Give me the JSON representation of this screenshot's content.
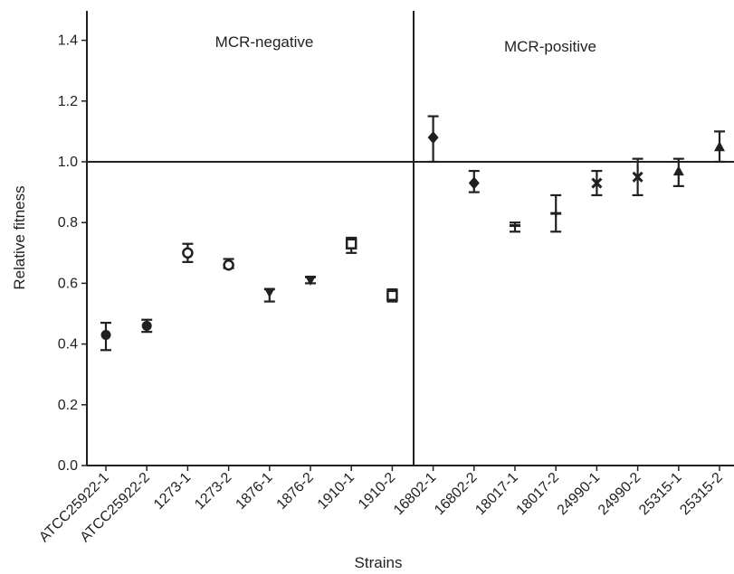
{
  "chart_data": {
    "type": "scatter",
    "title": "",
    "xlabel": "Strains",
    "ylabel": "Relative fitness",
    "ylim": [
      0,
      1.5
    ],
    "yticks": [
      "0.0",
      "0.2",
      "0.4",
      "0.6",
      "0.8",
      "1.0",
      "1.2",
      "1.4"
    ],
    "reference_line_y": 1.0,
    "grid": false,
    "categories": [
      "ATCC25922-1",
      "ATCC25922-2",
      "1273-1",
      "1273-2",
      "1876-1",
      "1876-2",
      "1910-1",
      "1910-2",
      "16802-1",
      "16802-2",
      "18017-1",
      "18017-2",
      "24990-1",
      "24990-2",
      "25315-1",
      "25315-2"
    ],
    "groups": [
      {
        "label": "MCR-negative",
        "categories": [
          "ATCC25922-1",
          "ATCC25922-2",
          "1273-1",
          "1273-2",
          "1876-1",
          "1876-2",
          "1910-1",
          "1910-2"
        ]
      },
      {
        "label": "MCR-positive",
        "categories": [
          "16802-1",
          "16802-2",
          "18017-1",
          "18017-2",
          "24990-1",
          "24990-2",
          "25315-1",
          "25315-2"
        ]
      }
    ],
    "points": [
      {
        "category": "ATCC25922-1",
        "value": 0.43,
        "low": 0.38,
        "high": 0.47,
        "marker": "circle-filled"
      },
      {
        "category": "ATCC25922-2",
        "value": 0.46,
        "low": 0.44,
        "high": 0.48,
        "marker": "circle-filled"
      },
      {
        "category": "1273-1",
        "value": 0.7,
        "low": 0.67,
        "high": 0.73,
        "marker": "circle-open"
      },
      {
        "category": "1273-2",
        "value": 0.66,
        "low": 0.65,
        "high": 0.68,
        "marker": "circle-open"
      },
      {
        "category": "1876-1",
        "value": 0.57,
        "low": 0.54,
        "high": 0.58,
        "marker": "triangle-down"
      },
      {
        "category": "1876-2",
        "value": 0.61,
        "low": 0.6,
        "high": 0.62,
        "marker": "triangle-down"
      },
      {
        "category": "1910-1",
        "value": 0.73,
        "low": 0.7,
        "high": 0.75,
        "marker": "square-open"
      },
      {
        "category": "1910-2",
        "value": 0.56,
        "low": 0.54,
        "high": 0.58,
        "marker": "square-open"
      },
      {
        "category": "16802-1",
        "value": 1.08,
        "low": 1.0,
        "high": 1.15,
        "marker": "diamond-filled"
      },
      {
        "category": "16802-2",
        "value": 0.93,
        "low": 0.9,
        "high": 0.97,
        "marker": "diamond-filled"
      },
      {
        "category": "18017-1",
        "value": 0.79,
        "low": 0.77,
        "high": 0.8,
        "marker": "plus"
      },
      {
        "category": "18017-2",
        "value": 0.83,
        "low": 0.77,
        "high": 0.89,
        "marker": "plus"
      },
      {
        "category": "24990-1",
        "value": 0.93,
        "low": 0.89,
        "high": 0.97,
        "marker": "cross"
      },
      {
        "category": "24990-2",
        "value": 0.95,
        "low": 0.89,
        "high": 1.01,
        "marker": "cross"
      },
      {
        "category": "25315-1",
        "value": 0.97,
        "low": 0.92,
        "high": 1.01,
        "marker": "triangle-up"
      },
      {
        "category": "25315-2",
        "value": 1.05,
        "low": 1.0,
        "high": 1.1,
        "marker": "triangle-up"
      }
    ]
  }
}
